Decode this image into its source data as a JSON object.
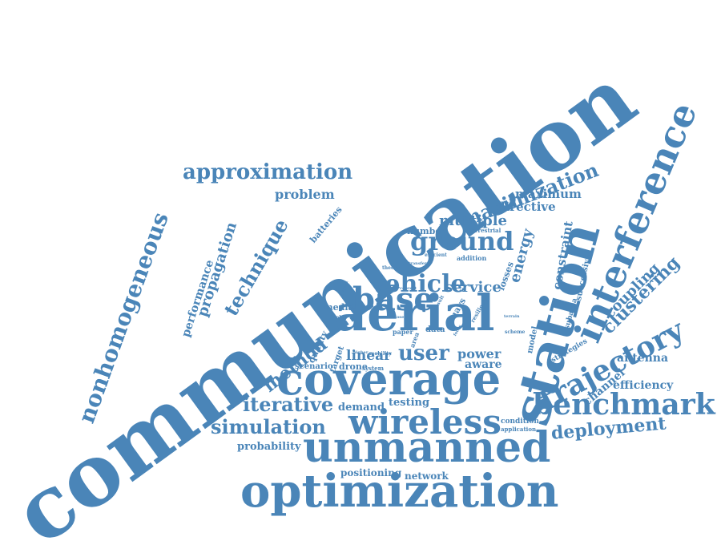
{
  "colors": {
    "word": "#4a85b8",
    "background": "#ffffff"
  },
  "words": [
    "communication",
    "station",
    "aerial",
    "coverage",
    "optimization",
    "unmanned",
    "interference",
    "wireless",
    "benchmark",
    "base",
    "trajectory",
    "ground",
    "vehicle",
    "approximation",
    "nonhomogeneous",
    "technique",
    "maximization",
    "iterative",
    "simulation",
    "method",
    "user",
    "clustering",
    "deployment",
    "propagation",
    "energy",
    "multiple",
    "service",
    "performance",
    "coupling",
    "constraint",
    "problem",
    "linear",
    "maximum",
    "directive",
    "power",
    "aware",
    "antenna",
    "efficiency",
    "channel",
    "testing",
    "demand",
    "probability",
    "positioning",
    "network",
    "media",
    "batteries",
    "number",
    "losses",
    "successive",
    "model",
    "strategies",
    "subarea",
    "uavs",
    "drone",
    "quality",
    "scenario",
    "target",
    "data",
    "paper",
    "deploy",
    "mobility",
    "higher",
    "system",
    "condition",
    "application",
    "terrestrial",
    "efficient",
    "addition",
    "transfer",
    "theory",
    "convert",
    "close",
    "resilient",
    "scheme",
    "area",
    "terrain",
    "impact",
    "result",
    "focus"
  ]
}
